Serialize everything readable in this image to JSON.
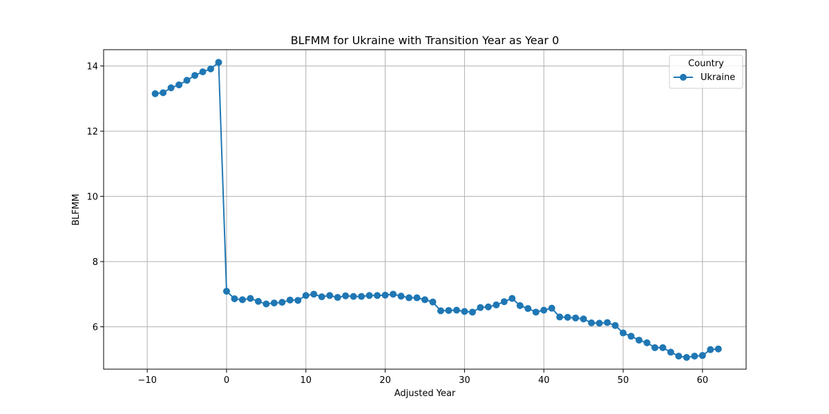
{
  "chart_data": {
    "type": "line",
    "title": "BLFMM for Ukraine with Transition Year as Year 0",
    "xlabel": "Adjusted Year",
    "ylabel": "BLFMM",
    "xlim": [
      -15.5,
      65.5
    ],
    "ylim": [
      4.7,
      14.5
    ],
    "xticks": [
      -10,
      0,
      10,
      20,
      30,
      40,
      50,
      60
    ],
    "yticks": [
      6,
      8,
      10,
      12,
      14
    ],
    "grid": true,
    "legend": {
      "title": "Country",
      "placement": "top-right"
    },
    "series": [
      {
        "name": "Ukraine",
        "color": "#1f77b4",
        "marker": "circle",
        "x": [
          -9,
          -8,
          -7,
          -6,
          -5,
          -4,
          -3,
          -2,
          -1,
          0,
          1,
          2,
          3,
          4,
          5,
          6,
          7,
          8,
          9,
          10,
          11,
          12,
          13,
          14,
          15,
          16,
          17,
          18,
          19,
          20,
          21,
          22,
          23,
          24,
          25,
          26,
          27,
          28,
          29,
          30,
          31,
          32,
          33,
          34,
          35,
          36,
          37,
          38,
          39,
          40,
          41,
          42,
          43,
          44,
          45,
          46,
          47,
          48,
          49,
          50,
          51,
          52,
          53,
          54,
          55,
          56,
          57,
          58,
          59,
          60,
          61,
          62
        ],
        "y": [
          13.15,
          13.18,
          13.33,
          13.42,
          13.56,
          13.71,
          13.82,
          13.91,
          14.11,
          7.09,
          6.86,
          6.83,
          6.87,
          6.78,
          6.7,
          6.73,
          6.75,
          6.82,
          6.81,
          6.96,
          7.0,
          6.92,
          6.96,
          6.9,
          6.95,
          6.93,
          6.93,
          6.96,
          6.96,
          6.97,
          7.0,
          6.94,
          6.89,
          6.89,
          6.83,
          6.76,
          6.49,
          6.5,
          6.51,
          6.47,
          6.45,
          6.59,
          6.61,
          6.67,
          6.77,
          6.87,
          6.65,
          6.56,
          6.45,
          6.51,
          6.57,
          6.3,
          6.29,
          6.27,
          6.24,
          6.12,
          6.11,
          6.13,
          6.04,
          5.81,
          5.71,
          5.59,
          5.51,
          5.36,
          5.36,
          5.22,
          5.1,
          5.06,
          5.1,
          5.12,
          5.3,
          5.32
        ]
      }
    ]
  }
}
